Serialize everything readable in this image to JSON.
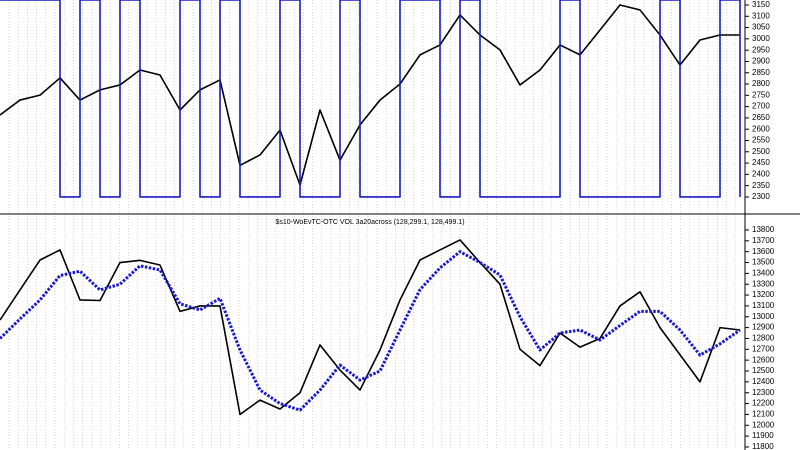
{
  "chart_data": [
    {
      "type": "line",
      "ylim": [
        2229,
        3172
      ],
      "yticks": [
        2300,
        2350,
        2400,
        2450,
        2500,
        2550,
        2600,
        2650,
        2700,
        2750,
        2800,
        2850,
        2900,
        2950,
        3000,
        3050,
        3100,
        3150
      ],
      "series": [
        {
          "color": "#000000",
          "values": [
            2663,
            2729,
            2751,
            2827,
            2729,
            2774,
            2796,
            2862,
            2840,
            2685,
            2774,
            2818,
            2440,
            2486,
            2596,
            2353,
            2685,
            2463,
            2619,
            2729,
            2800,
            2929,
            2973,
            3106,
            3017,
            2951,
            2796,
            2862,
            2973,
            2929,
            3039,
            3150,
            3128,
            3017,
            2884,
            2995,
            3017,
            3017
          ]
        },
        {
          "color": "#1a1acc",
          "step": "after",
          "values": [
            3172,
            3172,
            3172,
            2300,
            3172,
            2300,
            3172,
            2300,
            2300,
            3172,
            2300,
            3172,
            2300,
            2300,
            3172,
            2300,
            2300,
            3172,
            2300,
            2300,
            3172,
            3172,
            2300,
            3172,
            2300,
            2300,
            2300,
            2300,
            3172,
            2300,
            2300,
            2300,
            2300,
            3172,
            2300,
            2300,
            3172,
            2300
          ]
        }
      ]
    },
    {
      "type": "line",
      "title": "$s10-WoEvTC-OTC VOL 3a20across (128,299.1, 128,499.1)",
      "ylim": [
        11772,
        13938
      ],
      "yticks": [
        11800,
        11900,
        12000,
        12100,
        12200,
        12300,
        12400,
        12500,
        12600,
        12700,
        12800,
        12900,
        13000,
        13100,
        13200,
        13300,
        13400,
        13500,
        13600,
        13700,
        13800
      ],
      "series": [
        {
          "color": "#000000",
          "values": [
            12970,
            13247,
            13523,
            13616,
            13155,
            13150,
            13500,
            13520,
            13477,
            13050,
            13100,
            13100,
            12100,
            12232,
            12150,
            12300,
            12740,
            12509,
            12325,
            12694,
            13155,
            13523,
            13616,
            13708,
            13500,
            13300,
            12700,
            12550,
            12850,
            12720,
            12800,
            13100,
            13230,
            12900,
            12650,
            12400,
            12900,
            12878
          ]
        },
        {
          "color": "#1a1acc",
          "style": "dotted",
          "values": [
            12800,
            12980,
            13155,
            13380,
            13420,
            13247,
            13300,
            13470,
            13431,
            13120,
            13062,
            13170,
            12694,
            12325,
            12200,
            12140,
            12325,
            12555,
            12417,
            12500,
            12878,
            13250,
            13450,
            13600,
            13500,
            13385,
            13000,
            12694,
            12850,
            12878,
            12786,
            12920,
            13050,
            13050,
            12878,
            12647,
            12750,
            12878
          ]
        }
      ]
    }
  ]
}
